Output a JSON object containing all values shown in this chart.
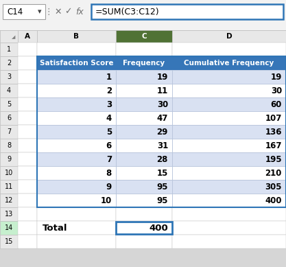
{
  "title_bar_text": "=SUM(C3:C12)",
  "cell_ref": "C14",
  "table_headers": [
    "Satisfaction Score",
    "Frequency",
    "Cumulative Frequency"
  ],
  "data_rows": [
    [
      1,
      19,
      19
    ],
    [
      2,
      11,
      30
    ],
    [
      3,
      30,
      60
    ],
    [
      4,
      47,
      107
    ],
    [
      5,
      29,
      136
    ],
    [
      6,
      31,
      167
    ],
    [
      7,
      28,
      195
    ],
    [
      8,
      15,
      210
    ],
    [
      9,
      95,
      305
    ],
    [
      10,
      95,
      400
    ]
  ],
  "total_label": "Total",
  "total_value": 400,
  "header_bg": "#3676B8",
  "header_text": "#FFFFFF",
  "row_alt1_bg": "#D9E1F2",
  "row_alt2_bg": "#FFFFFF",
  "excel_bg": "#D6D6D6",
  "col_header_bg": "#E8E8E8",
  "col_header_selected_bg": "#507235",
  "row_header_selected_bg": "#C6EFCE",
  "formula_bar_border": "#2E75B6",
  "total_cell_border": "#2E75B6",
  "grid_line_color": "#C0C0C0",
  "table_border_color": "#2E75B6",
  "white": "#FFFFFF"
}
